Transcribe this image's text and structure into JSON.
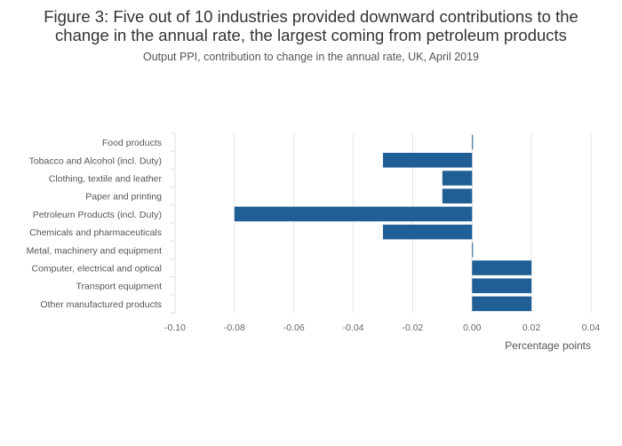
{
  "title_line1": "Figure 3: Five out of 10 industries provided downward contributions to the",
  "title_line2": "change in the annual rate, the largest coming from petroleum products",
  "subtitle": "Output PPI, contribution to change in the annual rate, UK, April 2019",
  "chart_data": {
    "type": "bar",
    "orientation": "horizontal",
    "title": "Figure 3: Five out of 10 industries provided downward contributions to the change in the annual rate, the largest coming from petroleum products",
    "subtitle": "Output PPI, contribution to change in the annual rate, UK, April 2019",
    "xlabel": "Percentage points",
    "ylabel": "",
    "xlim": [
      -0.1,
      0.04
    ],
    "xticks": [
      -0.1,
      -0.08,
      -0.06,
      -0.04,
      -0.02,
      0,
      0.02,
      0.04
    ],
    "xtick_labels": [
      "-0.10",
      "-0.08",
      "-0.06",
      "-0.04",
      "-0.02",
      "0.00",
      "0.02",
      "0.04"
    ],
    "grid": true,
    "legend": "none",
    "bar_color": "#1f5f96",
    "categories": [
      "Food products",
      "Tobacco and Alcohol (incl. Duty)",
      "Clothing, textile and leather",
      "Paper and printing",
      "Petroleum Products (incl. Duty)",
      "Chemicals and pharmaceuticals",
      "Metal, machinery and equipment",
      "Computer, electrical and optical",
      "Transport equipment",
      "Other manufactured products"
    ],
    "values": [
      0.0,
      -0.03,
      -0.01,
      -0.01,
      -0.08,
      -0.03,
      0.0,
      0.02,
      0.02,
      0.02
    ]
  }
}
